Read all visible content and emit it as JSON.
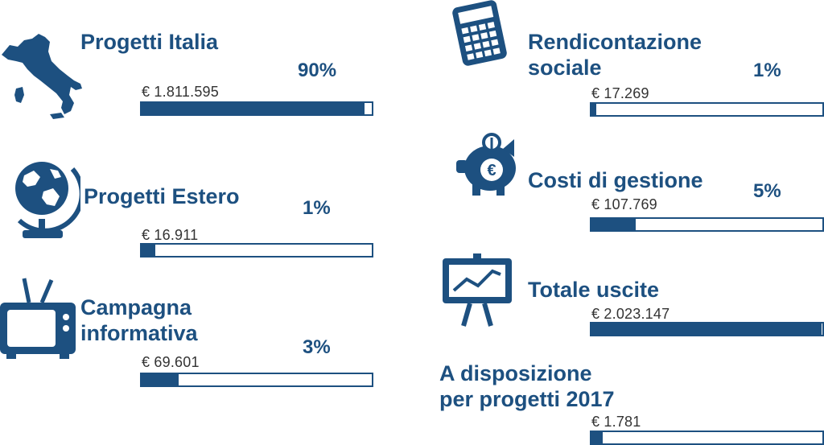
{
  "colors": {
    "primary": "#1d5080",
    "text": "#333333",
    "background": "#ffffff"
  },
  "items": [
    {
      "key": "italia",
      "icon": "italy-map-icon",
      "title": "Progetti Italia",
      "amount": "€ 1.811.595",
      "percent": "90%",
      "fill": 0.97
    },
    {
      "key": "estero",
      "icon": "globe-icon",
      "title": "Progetti Estero",
      "amount": "€ 16.911",
      "percent": "1%",
      "fill": 0.06
    },
    {
      "key": "campagna",
      "icon": "television-icon",
      "title": "Campagna\ninformativa",
      "amount": "€ 69.601",
      "percent": "3%",
      "fill": 0.16
    },
    {
      "key": "rendicontazione",
      "icon": "calculator-icon",
      "title": "Rendicontazione\nsociale",
      "amount": "€ 17.269",
      "percent": "1%",
      "fill": 0.02
    },
    {
      "key": "costi",
      "icon": "piggy-bank-euro-icon",
      "title": "Costi di gestione",
      "amount": "€ 107.769",
      "percent": "5%",
      "fill": 0.19
    },
    {
      "key": "totale",
      "icon": "presentation-chart-icon",
      "title": "Totale uscite",
      "amount": "€ 2.023.147",
      "percent": "",
      "fill": 0.995
    },
    {
      "key": "disposizione",
      "icon": "",
      "title": "A disposizione\nper progetti 2017",
      "amount": "€ 1.781",
      "percent": "",
      "fill": 0.05
    }
  ]
}
